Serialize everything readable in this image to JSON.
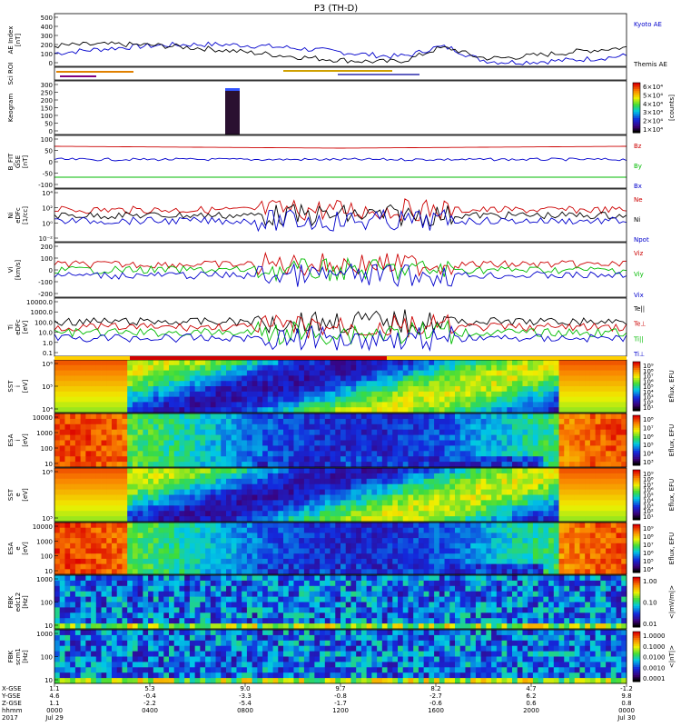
{
  "title": "P3 (TH-D)",
  "chart_data": [
    {
      "type": "line",
      "ylabel": "AE Index\n[nT]",
      "yticks": [
        "500",
        "400",
        "300",
        "200",
        "100",
        "0"
      ],
      "series": [
        {
          "name": "Kyoto AE",
          "color": "#0000cc"
        },
        {
          "name": "Themis AE",
          "color": "#000000"
        }
      ]
    },
    {
      "type": "bar",
      "ylabel": "Sci ROI",
      "yticks": []
    },
    {
      "type": "heatmap",
      "ylabel": "Keogram",
      "yticks": [
        "300",
        "250",
        "200",
        "150",
        "100",
        "50",
        "0"
      ],
      "colorbar": {
        "ticks": [
          "6×10⁴",
          "5×10⁴",
          "4×10⁴",
          "3×10⁴",
          "2×10⁴",
          "1×10⁴"
        ],
        "label": "[counts]"
      }
    },
    {
      "type": "line",
      "ylabel": "B_FIT\nGSE\n[nT]",
      "yticks": [
        "100",
        "50",
        "0",
        "-50",
        "-100"
      ],
      "series": [
        {
          "name": "Bz",
          "color": "#cc0000"
        },
        {
          "name": "By",
          "color": "#00bb00"
        },
        {
          "name": "Bx",
          "color": "#0000cc"
        }
      ]
    },
    {
      "type": "line",
      "ylabel": "Ni\neDFc\n[1/cc]",
      "yticks": [
        "10⁴",
        "10²",
        "10⁰",
        "10⁻²"
      ],
      "scale": "log",
      "series": [
        {
          "name": "Ne",
          "color": "#cc0000"
        },
        {
          "name": "Ni",
          "color": "#000000"
        },
        {
          "name": "Npot",
          "color": "#0000cc"
        }
      ]
    },
    {
      "type": "line",
      "ylabel": "Vi\n[km/s]",
      "yticks": [
        "200",
        "100",
        "0",
        "-100",
        "-200"
      ],
      "series": [
        {
          "name": "Viz",
          "color": "#cc0000"
        },
        {
          "name": "Viy",
          "color": "#00bb00"
        },
        {
          "name": "Vix",
          "color": "#0000cc"
        }
      ]
    },
    {
      "type": "line",
      "ylabel": "Ti\neDFc\n[eV]",
      "yticks": [
        "10000.0",
        "1000.0",
        "100.0",
        "10.0",
        "1.0",
        "0.1"
      ],
      "scale": "log",
      "series": [
        {
          "name": "Te||",
          "color": "#000000"
        },
        {
          "name": "Te⊥",
          "color": "#cc0000"
        },
        {
          "name": "Ti||",
          "color": "#00bb00"
        },
        {
          "name": "Ti⊥",
          "color": "#0000cc"
        }
      ]
    },
    {
      "type": "heatmap",
      "ylabel": "SST\ni\n[eV]",
      "yticks": [
        "10⁶",
        "10⁵",
        "10⁴"
      ],
      "colorbar": {
        "ticks": [
          "10⁹",
          "10⁸",
          "10⁷",
          "10⁶",
          "10⁵",
          "10⁴",
          "10³",
          "10²",
          "10¹"
        ],
        "label": "Eflux, EFU"
      }
    },
    {
      "type": "heatmap",
      "ylabel": "ESA\ni\n[eV]",
      "yticks": [
        "10000",
        "1000",
        "100",
        "10"
      ],
      "colorbar": {
        "ticks": [
          "10⁸",
          "10⁷",
          "10⁶",
          "10⁵",
          "10⁴",
          "10³"
        ],
        "label": "Eflux, EFU"
      }
    },
    {
      "type": "heatmap",
      "ylabel": "SST\ne\n[eV]",
      "yticks": [
        "10⁶",
        "10⁵"
      ],
      "colorbar": {
        "ticks": [
          "10⁹",
          "10⁸",
          "10⁷",
          "10⁶",
          "10⁵",
          "10⁴",
          "10³",
          "10²",
          "10¹"
        ],
        "label": "Eflux, EFU"
      }
    },
    {
      "type": "heatmap",
      "ylabel": "ESA\ne\n[eV]",
      "yticks": [
        "10000",
        "1000",
        "100",
        "10"
      ],
      "colorbar": {
        "ticks": [
          "10⁹",
          "10⁸",
          "10⁷",
          "10⁶",
          "10⁵",
          "10⁴"
        ],
        "label": "Eflux, EFU"
      }
    },
    {
      "type": "heatmap",
      "ylabel": "FBK\nedc12\n[Hz]",
      "yticks": [
        "1000",
        "100",
        "10"
      ],
      "colorbar": {
        "ticks": [
          "1.00",
          "0.10",
          "0.01"
        ],
        "label": "<|mV/m|>"
      }
    },
    {
      "type": "heatmap",
      "ylabel": "FBK\nscm1\n[Hz]",
      "yticks": [
        "1000",
        "100",
        "10"
      ],
      "colorbar": {
        "ticks": [
          "1.0000",
          "0.1000",
          "0.0100",
          "0.0010",
          "0.0001"
        ],
        "label": "<|nT|>"
      }
    }
  ],
  "x_axis": {
    "row_labels": [
      "X-GSE",
      "Y-GSE",
      "Z-GSE",
      "hhmm",
      "2017"
    ],
    "ticks": [
      [
        "1.1",
        "4.6",
        "1.1",
        "0000",
        "Jul 29"
      ],
      [
        "5.3",
        "-0.4",
        "-2.2",
        "0400",
        ""
      ],
      [
        "9.0",
        "-3.3",
        "-5.4",
        "0800",
        ""
      ],
      [
        "9.7",
        "-0.8",
        "-1.7",
        "1200",
        ""
      ],
      [
        "8.2",
        "-2.7",
        "-0.6",
        "1600",
        ""
      ],
      [
        "4.7",
        "6.2",
        "0.6",
        "2000",
        ""
      ],
      [
        "-1.2",
        "9.8",
        "0.8",
        "0000",
        "Jul 30"
      ]
    ]
  }
}
